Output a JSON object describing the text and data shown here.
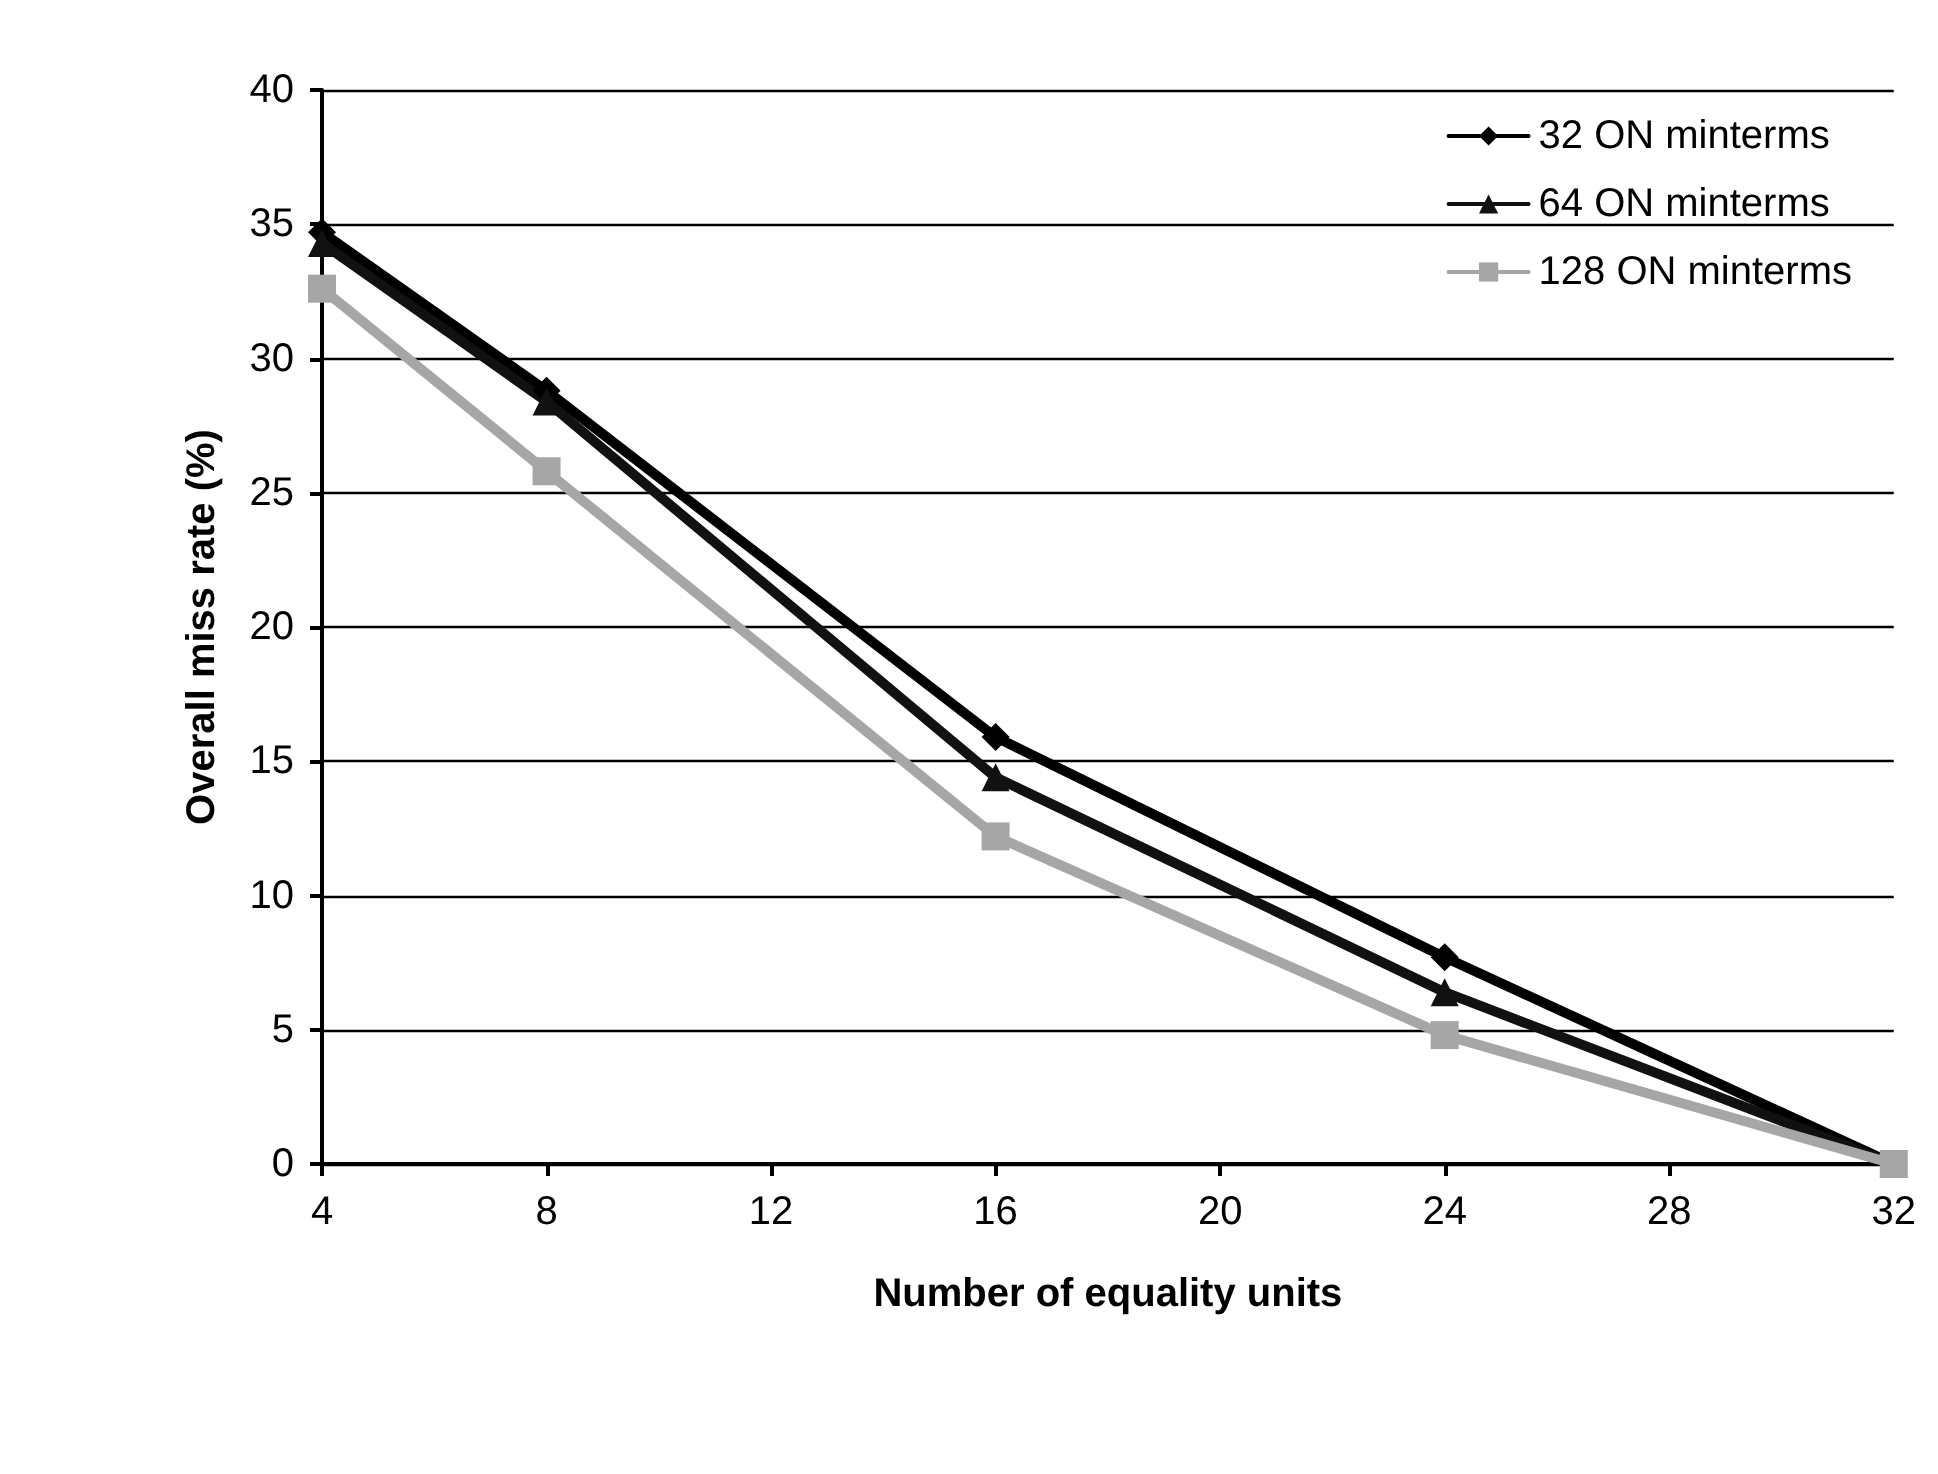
{
  "chart_data": {
    "type": "line",
    "xlabel": "Number of equality units",
    "ylabel": "Overall miss rate (%)",
    "x": [
      4,
      8,
      16,
      24,
      32
    ],
    "series": [
      {
        "name": "32 ON minterms",
        "color": "#000000",
        "marker": "diamond",
        "values": [
          34.7,
          28.8,
          15.9,
          7.7,
          0
        ]
      },
      {
        "name": "64 ON minterms",
        "color": "#111111",
        "marker": "triangle",
        "values": [
          34.3,
          28.4,
          14.4,
          6.4,
          0
        ]
      },
      {
        "name": "128 ON minterms",
        "color": "#a6a6a6",
        "marker": "square",
        "values": [
          32.6,
          25.8,
          12.2,
          4.8,
          0
        ]
      }
    ],
    "xlim": [
      4,
      32
    ],
    "xticks": [
      4,
      8,
      12,
      16,
      20,
      24,
      28,
      32
    ],
    "ylim": [
      0,
      40
    ],
    "yticks": [
      0,
      5,
      10,
      15,
      20,
      25,
      30,
      35,
      40
    ],
    "grid": "y",
    "legend": "top right",
    "line_style": "solid"
  }
}
